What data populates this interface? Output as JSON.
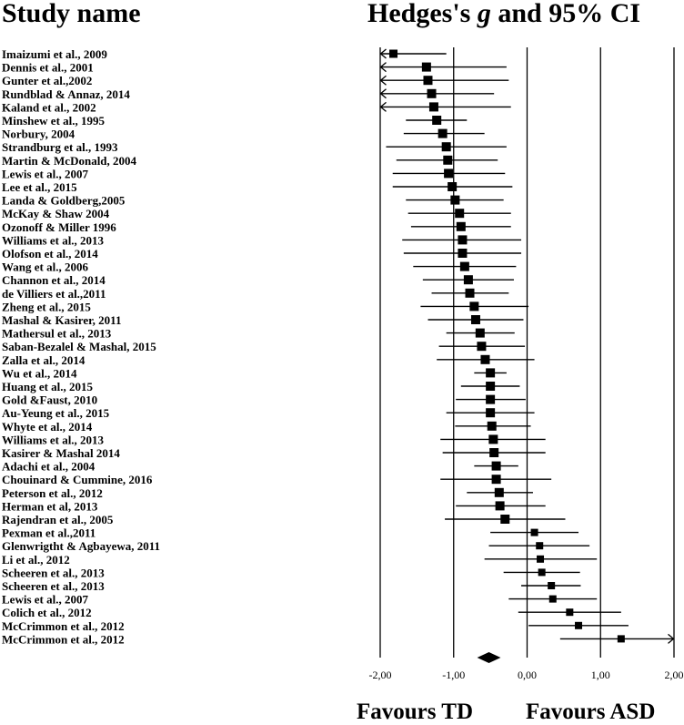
{
  "header": {
    "left": "Study name",
    "right_pre": "Hedges's ",
    "right_italic": "g",
    "right_post": " and 95% CI"
  },
  "footer": {
    "left": "Favours TD",
    "right": "Favours ASD"
  },
  "chart_data": {
    "type": "forest",
    "xlim": [
      -2.0,
      2.0
    ],
    "xticks": [
      -2,
      -1,
      0,
      1,
      2
    ],
    "xtick_labels": [
      "-2,00",
      "-1,00",
      "0,00",
      "1,00",
      "2,00"
    ],
    "grid_x": [
      -1,
      0,
      1,
      2
    ],
    "rows": [
      {
        "study": "Imaizumi et al., 2009",
        "g": -1.82,
        "lo": -2.2,
        "hi": -1.1
      },
      {
        "study": "Dennis et al., 2001",
        "g": -1.37,
        "lo": -2.2,
        "hi": -0.28
      },
      {
        "study": "Gunter et al.,2002",
        "g": -1.35,
        "lo": -2.2,
        "hi": -0.25
      },
      {
        "study": "Rundblad & Annaz, 2014",
        "g": -1.3,
        "lo": -2.2,
        "hi": -0.45
      },
      {
        "study": "Kaland et al., 2002",
        "g": -1.27,
        "lo": -2.2,
        "hi": -0.22
      },
      {
        "study": "Minshew et al., 1995",
        "g": -1.23,
        "lo": -1.65,
        "hi": -0.82
      },
      {
        "study": "Norbury, 2004",
        "g": -1.15,
        "lo": -1.68,
        "hi": -0.58
      },
      {
        "study": "Strandburg et al., 1993",
        "g": -1.1,
        "lo": -1.92,
        "hi": -0.28
      },
      {
        "study": "Martin & McDonald, 2004",
        "g": -1.08,
        "lo": -1.78,
        "hi": -0.4
      },
      {
        "study": "Lewis et al., 2007",
        "g": -1.07,
        "lo": -1.83,
        "hi": -0.3
      },
      {
        "study": "Lee et al., 2015",
        "g": -1.02,
        "lo": -1.83,
        "hi": -0.2
      },
      {
        "study": "Landa & Goldberg,2005",
        "g": -0.98,
        "lo": -1.65,
        "hi": -0.32
      },
      {
        "study": "McKay & Shaw 2004",
        "g": -0.92,
        "lo": -1.62,
        "hi": -0.22
      },
      {
        "study": "Ozonoff & Miller 1996",
        "g": -0.9,
        "lo": -1.58,
        "hi": -0.22
      },
      {
        "study": "Williams et al., 2013",
        "g": -0.88,
        "lo": -1.7,
        "hi": -0.08
      },
      {
        "study": "Olofson et al., 2014",
        "g": -0.88,
        "lo": -1.68,
        "hi": -0.08
      },
      {
        "study": "Wang et al., 2006",
        "g": -0.85,
        "lo": -1.55,
        "hi": -0.15
      },
      {
        "study": "Channon et al., 2014",
        "g": -0.8,
        "lo": -1.42,
        "hi": -0.18
      },
      {
        "study": "de Villiers et al.,2011",
        "g": -0.78,
        "lo": -1.3,
        "hi": -0.25
      },
      {
        "study": "Zheng et al., 2015",
        "g": -0.72,
        "lo": -1.45,
        "hi": 0.02
      },
      {
        "study": "Mashal & Kasirer, 2011",
        "g": -0.7,
        "lo": -1.35,
        "hi": -0.05
      },
      {
        "study": "Mathersul et al., 2013",
        "g": -0.64,
        "lo": -1.1,
        "hi": -0.17
      },
      {
        "study": "Saban-Bezalel & Mashal, 2015",
        "g": -0.62,
        "lo": -1.2,
        "hi": -0.03
      },
      {
        "study": "Zalla et al., 2014",
        "g": -0.57,
        "lo": -1.23,
        "hi": 0.1
      },
      {
        "study": "Wu et al., 2014",
        "g": -0.5,
        "lo": -0.72,
        "hi": -0.28
      },
      {
        "study": "Huang et al., 2015",
        "g": -0.5,
        "lo": -0.9,
        "hi": -0.1
      },
      {
        "study": "Gold &Faust, 2010",
        "g": -0.5,
        "lo": -0.97,
        "hi": -0.02
      },
      {
        "study": "Au-Yeung et al., 2015",
        "g": -0.5,
        "lo": -1.1,
        "hi": 0.1
      },
      {
        "study": "Whyte et al., 2014",
        "g": -0.48,
        "lo": -0.98,
        "hi": 0.05
      },
      {
        "study": "Williams et al., 2013",
        "g": -0.46,
        "lo": -1.18,
        "hi": 0.25
      },
      {
        "study": "Kasirer & Mashal 2014",
        "g": -0.45,
        "lo": -1.15,
        "hi": 0.25
      },
      {
        "study": "Adachi et al., 2004",
        "g": -0.42,
        "lo": -0.72,
        "hi": -0.12
      },
      {
        "study": "Chouinard & Cummine, 2016",
        "g": -0.42,
        "lo": -1.18,
        "hi": 0.33
      },
      {
        "study": "Peterson et al., 2012",
        "g": -0.38,
        "lo": -0.82,
        "hi": 0.08
      },
      {
        "study": "Herman et al, 2013",
        "g": -0.37,
        "lo": -0.97,
        "hi": 0.25
      },
      {
        "study": "Rajendran et al., 2005",
        "g": -0.3,
        "lo": -1.12,
        "hi": 0.52
      },
      {
        "study": "Pexman et al.,2011",
        "g": 0.1,
        "lo": -0.5,
        "hi": 0.7
      },
      {
        "study": "Glenwrigtht & Agbayewa, 2011",
        "g": 0.17,
        "lo": -0.52,
        "hi": 0.85
      },
      {
        "study": "Li et al., 2012",
        "g": 0.18,
        "lo": -0.58,
        "hi": 0.95
      },
      {
        "study": "Scheeren et al., 2013",
        "g": 0.2,
        "lo": -0.32,
        "hi": 0.72
      },
      {
        "study": "Scheeren et al., 2013",
        "g": 0.33,
        "lo": -0.08,
        "hi": 0.73
      },
      {
        "study": "Lewis et al., 2007",
        "g": 0.35,
        "lo": -0.25,
        "hi": 0.95
      },
      {
        "study": "Colich et al., 2012",
        "g": 0.58,
        "lo": -0.12,
        "hi": 1.28
      },
      {
        "study": "McCrimmon et al., 2012",
        "g": 0.7,
        "lo": 0.02,
        "hi": 1.38
      },
      {
        "study": "McCrimmon et al., 2012",
        "g": 1.28,
        "lo": 0.45,
        "hi": 2.2
      }
    ],
    "summary": {
      "g": -0.52,
      "lo": -0.68,
      "hi": -0.36
    }
  }
}
